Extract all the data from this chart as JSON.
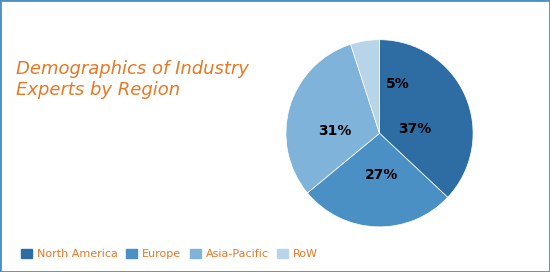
{
  "title": "Demographics of Industry\nExperts by Region",
  "title_color": "#E87722",
  "title_fontsize": 13,
  "slices": [
    37,
    27,
    31,
    5
  ],
  "labels": [
    "North America",
    "Europe",
    "Asia-Pacific",
    "RoW"
  ],
  "colors": [
    "#2E6DA4",
    "#4A90C4",
    "#7FB3D9",
    "#B8D4E8"
  ],
  "pct_labels": [
    "37%",
    "27%",
    "31%",
    "5%"
  ],
  "legend_text_color": "#E87722",
  "legend_marker_colors": [
    "#2E6DA4",
    "#4A90C4",
    "#7FB3D9",
    "#B8D4E8"
  ],
  "background_color": "#FFFFFF",
  "border_color": "#4A90C4",
  "startangle": 90
}
